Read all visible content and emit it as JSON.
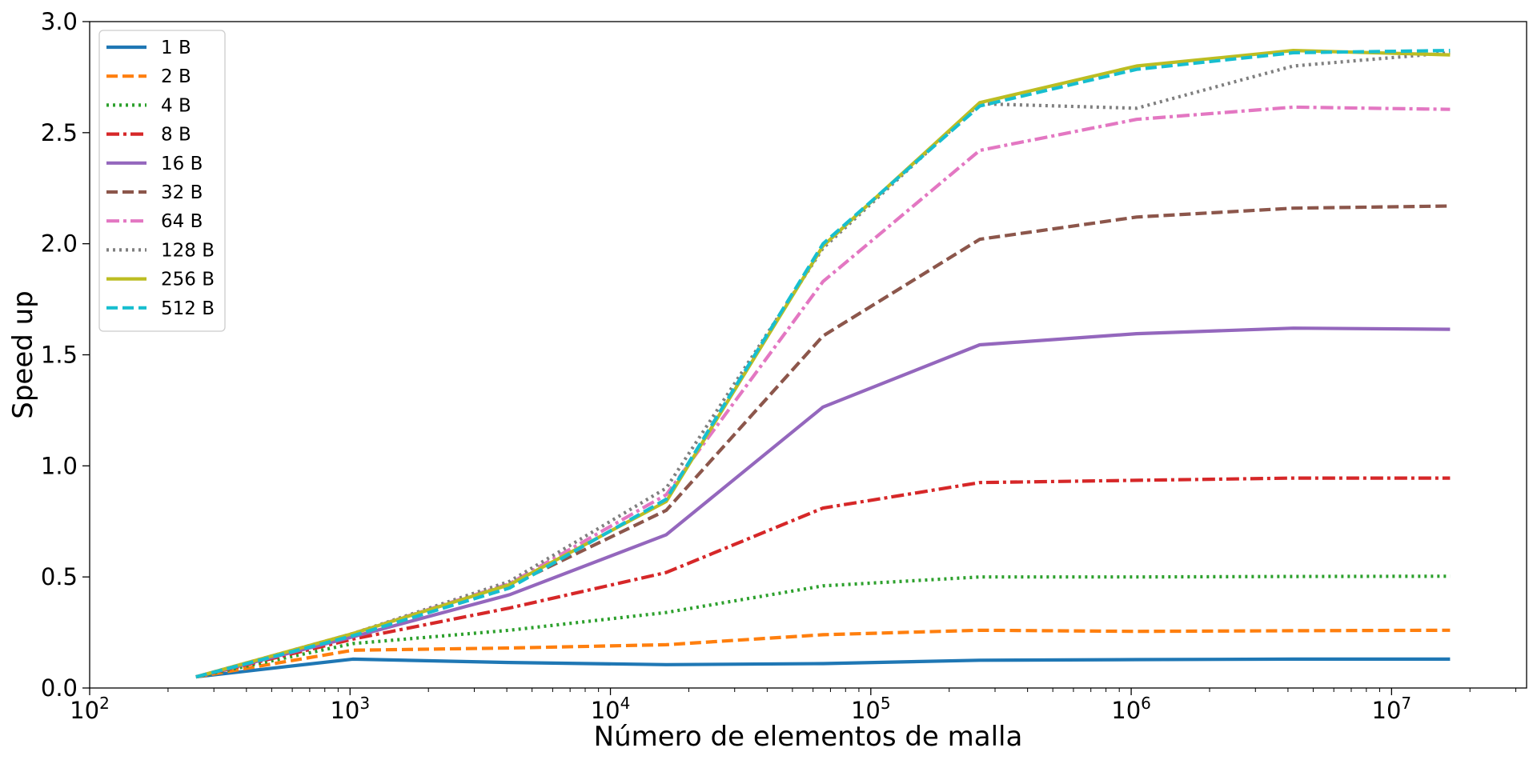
{
  "chart_data": {
    "type": "line",
    "title": "",
    "xlabel": "Número de elementos de malla",
    "ylabel": "Speed up",
    "x_scale": "log",
    "xlim": [
      100,
      33000000
    ],
    "ylim": [
      0,
      3.0
    ],
    "x_ticks": [
      {
        "value": 100,
        "base": "10",
        "exp": "2"
      },
      {
        "value": 1000,
        "base": "10",
        "exp": "3"
      },
      {
        "value": 10000,
        "base": "10",
        "exp": "4"
      },
      {
        "value": 100000,
        "base": "10",
        "exp": "5"
      },
      {
        "value": 1000000,
        "base": "10",
        "exp": "6"
      },
      {
        "value": 10000000,
        "base": "10",
        "exp": "7"
      }
    ],
    "y_ticks": [
      {
        "value": 0.0,
        "label": "0.0"
      },
      {
        "value": 0.5,
        "label": "0.5"
      },
      {
        "value": 1.0,
        "label": "1.0"
      },
      {
        "value": 1.5,
        "label": "1.5"
      },
      {
        "value": 2.0,
        "label": "2.0"
      },
      {
        "value": 2.5,
        "label": "2.5"
      },
      {
        "value": 3.0,
        "label": "3.0"
      }
    ],
    "grid": false,
    "legend_position": "top-left",
    "x": [
      256,
      1024,
      4096,
      16384,
      65536,
      262144,
      1048576,
      4194304,
      16777216
    ],
    "series": [
      {
        "name": "1 B",
        "color": "#1f77b4",
        "dash": "solid",
        "values": [
          0.05,
          0.13,
          0.115,
          0.105,
          0.11,
          0.125,
          0.128,
          0.13,
          0.13
        ]
      },
      {
        "name": "2 B",
        "color": "#ff7f0e",
        "dash": "dashed",
        "values": [
          0.05,
          0.17,
          0.18,
          0.195,
          0.24,
          0.26,
          0.255,
          0.258,
          0.26
        ]
      },
      {
        "name": "4 B",
        "color": "#2ca02c",
        "dash": "dotted",
        "values": [
          0.05,
          0.2,
          0.26,
          0.34,
          0.46,
          0.5,
          0.5,
          0.502,
          0.503
        ]
      },
      {
        "name": "8 B",
        "color": "#d62728",
        "dash": "dashdot",
        "values": [
          0.05,
          0.22,
          0.36,
          0.52,
          0.81,
          0.925,
          0.935,
          0.945,
          0.945
        ]
      },
      {
        "name": "16 B",
        "color": "#9467bd",
        "dash": "solid",
        "values": [
          0.05,
          0.23,
          0.42,
          0.69,
          1.265,
          1.545,
          1.595,
          1.62,
          1.615
        ]
      },
      {
        "name": "32 B",
        "color": "#8c564b",
        "dash": "dashed",
        "values": [
          0.05,
          0.24,
          0.46,
          0.8,
          1.585,
          2.02,
          2.12,
          2.16,
          2.17
        ]
      },
      {
        "name": "64 B",
        "color": "#e377c2",
        "dash": "dashdot",
        "values": [
          0.05,
          0.245,
          0.47,
          0.87,
          1.83,
          2.42,
          2.56,
          2.615,
          2.605
        ]
      },
      {
        "name": "128 B",
        "color": "#7f7f7f",
        "dash": "dotted",
        "values": [
          0.05,
          0.245,
          0.48,
          0.9,
          1.98,
          2.63,
          2.61,
          2.8,
          2.86
        ]
      },
      {
        "name": "256 B",
        "color": "#bcbd22",
        "dash": "solid",
        "values": [
          0.05,
          0.245,
          0.465,
          0.84,
          1.99,
          2.635,
          2.8,
          2.87,
          2.85
        ]
      },
      {
        "name": "512 B",
        "color": "#17becf",
        "dash": "dashed",
        "values": [
          0.05,
          0.235,
          0.45,
          0.85,
          2.0,
          2.62,
          2.785,
          2.86,
          2.87
        ]
      }
    ]
  }
}
